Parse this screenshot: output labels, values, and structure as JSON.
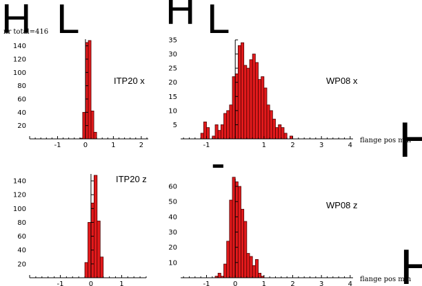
{
  "top_note": "nr total=416",
  "xlabel": "flange pos mm",
  "glyphs": [
    "H",
    "L",
    "H",
    "L",
    "H",
    "H",
    "-"
  ],
  "chart_data": [
    {
      "type": "bar",
      "annotation": "ITP20 x",
      "xlim": [
        -2.0,
        2.25
      ],
      "ylim": [
        0,
        150
      ],
      "xticks": [
        -1,
        0,
        1,
        2
      ],
      "yticks": [
        20,
        40,
        60,
        80,
        100,
        120,
        140
      ],
      "bin_width": 0.1,
      "bin_centers": [
        -0.15,
        -0.05,
        0.05,
        0.15,
        0.25,
        0.35
      ],
      "values": [
        1,
        40,
        145,
        148,
        42,
        10
      ]
    },
    {
      "type": "bar",
      "annotation": "WP08 x",
      "xlim": [
        -1.9,
        4.1
      ],
      "ylim": [
        0,
        35
      ],
      "xticks": [
        -1,
        1,
        2,
        3,
        4
      ],
      "yticks": [
        5,
        10,
        15,
        20,
        25,
        30,
        35
      ],
      "bin_width": 0.1,
      "bin_centers": [
        -1.15,
        -1.05,
        -0.95,
        -0.85,
        -0.75,
        -0.65,
        -0.55,
        -0.45,
        -0.35,
        -0.25,
        -0.15,
        -0.05,
        0.05,
        0.15,
        0.25,
        0.35,
        0.45,
        0.55,
        0.65,
        0.75,
        0.85,
        0.95,
        1.05,
        1.15,
        1.25,
        1.35,
        1.45,
        1.55,
        1.65,
        1.75,
        1.85,
        1.95
      ],
      "values": [
        2,
        6,
        4,
        0,
        1,
        5,
        3,
        5,
        9,
        10,
        12,
        22,
        23,
        33,
        34,
        26,
        25,
        28,
        30,
        27,
        21,
        22,
        18,
        12,
        10,
        7,
        4,
        5,
        4,
        2,
        0,
        1
      ]
    },
    {
      "type": "bar",
      "annotation": "ITP20 z",
      "xlim": [
        -2.0,
        1.8
      ],
      "ylim": [
        0,
        150
      ],
      "xticks": [
        -1,
        0,
        1
      ],
      "yticks": [
        20,
        40,
        60,
        80,
        100,
        120,
        140
      ],
      "bin_width": 0.1,
      "bin_centers": [
        -0.15,
        -0.05,
        0.05,
        0.15,
        0.25,
        0.35
      ],
      "values": [
        22,
        80,
        108,
        148,
        82,
        30
      ]
    },
    {
      "type": "bar",
      "annotation": "WP08 z",
      "xlim": [
        -1.9,
        4.1
      ],
      "ylim": [
        0,
        65
      ],
      "xticks": [
        -1,
        0,
        1,
        2,
        3,
        4
      ],
      "yticks": [
        10,
        20,
        30,
        40,
        50,
        60
      ],
      "bin_width": 0.1,
      "bin_centers": [
        -0.65,
        -0.55,
        -0.45,
        -0.35,
        -0.25,
        -0.15,
        -0.05,
        0.05,
        0.15,
        0.25,
        0.35,
        0.45,
        0.55,
        0.65,
        0.75,
        0.85,
        0.95
      ],
      "values": [
        1,
        3,
        1,
        9,
        24,
        51,
        66,
        63,
        60,
        45,
        37,
        16,
        14,
        8,
        12,
        3,
        1
      ]
    }
  ]
}
